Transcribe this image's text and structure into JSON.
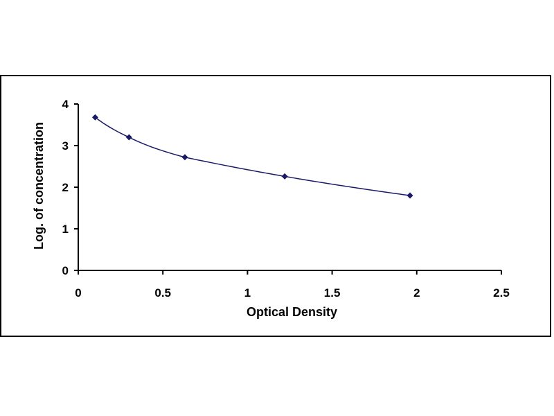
{
  "chart_data": {
    "type": "scatter",
    "title": "",
    "xlabel": "Optical Density",
    "ylabel": "Log. of concentration",
    "xlim": [
      0,
      2.5
    ],
    "ylim": [
      0,
      4
    ],
    "x_ticks": [
      "0",
      "0.5",
      "1",
      "1.5",
      "2",
      "2.5"
    ],
    "y_ticks": [
      "0",
      "1",
      "2",
      "3",
      "4"
    ],
    "series": [
      {
        "points": [
          {
            "x": 0.1,
            "y": 3.68
          },
          {
            "x": 0.3,
            "y": 3.2
          },
          {
            "x": 0.63,
            "y": 2.72
          },
          {
            "x": 1.22,
            "y": 2.26
          },
          {
            "x": 1.96,
            "y": 1.8
          }
        ],
        "marker_color": "#1a1a66",
        "trendline": "fitted curve",
        "trendline_color": "#1a1a66"
      }
    ],
    "grid": false,
    "legend": "none"
  }
}
